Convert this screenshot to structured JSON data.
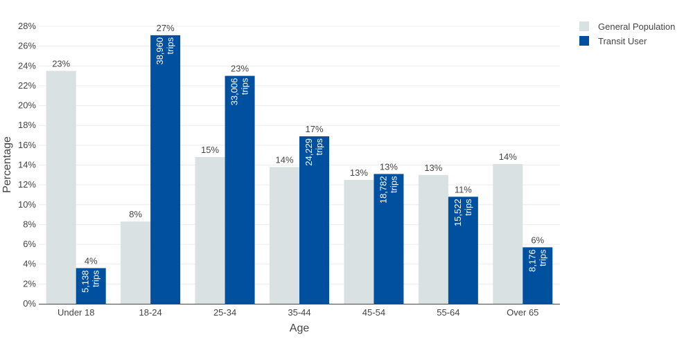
{
  "chart_data": {
    "type": "bar",
    "title": "",
    "xlabel": "Age",
    "ylabel": "Percentage",
    "ylim": [
      0,
      28
    ],
    "y_tick_step": 2,
    "y_tick_suffix": "%",
    "grid": true,
    "legend_position": "top-right",
    "categories": [
      "Under 18",
      "18-24",
      "25-34",
      "35-44",
      "45-54",
      "55-64",
      "Over 65"
    ],
    "series": [
      {
        "name": "General Population",
        "color": "#d9e1e2",
        "values": [
          23.5,
          8.3,
          14.8,
          13.8,
          12.5,
          13.0,
          14.1
        ],
        "labels": [
          "23%",
          "8%",
          "15%",
          "14%",
          "13%",
          "13%",
          "14%"
        ]
      },
      {
        "name": "Transit User",
        "color": "#0050a0",
        "values": [
          3.6,
          27.1,
          23.0,
          16.9,
          13.1,
          10.8,
          5.7
        ],
        "labels": [
          "4%",
          "27%",
          "23%",
          "17%",
          "13%",
          "11%",
          "6%"
        ],
        "inner_labels": [
          [
            "5,138",
            "trips"
          ],
          [
            "38,960",
            "trips"
          ],
          [
            "33,006",
            "trips"
          ],
          [
            "24,229",
            "trips"
          ],
          [
            "18,782",
            "trips"
          ],
          [
            "15,522",
            "trips"
          ],
          [
            "8,176",
            "trips"
          ]
        ]
      }
    ]
  }
}
